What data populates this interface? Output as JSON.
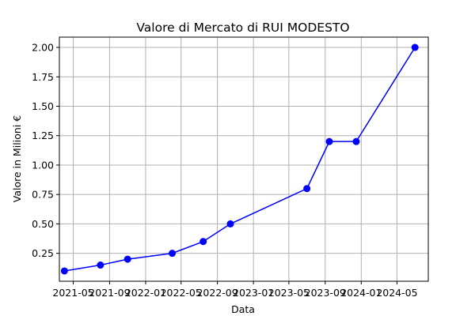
{
  "chart_data": {
    "type": "line",
    "title": "Valore di Mercato di RUI MODESTO",
    "xlabel": "Data",
    "ylabel": "Valore in Milioni €",
    "grid": true,
    "line_color": "#0000ff",
    "x_range": [
      "2021-03-15",
      "2024-08-15"
    ],
    "ylim": [
      0.0125,
      2.0875
    ],
    "x_ticks": [
      {
        "date": "2021-05-01",
        "label": "2021-05"
      },
      {
        "date": "2021-09-01",
        "label": "2021-09"
      },
      {
        "date": "2022-01-01",
        "label": "2022-01"
      },
      {
        "date": "2022-05-01",
        "label": "2022-05"
      },
      {
        "date": "2022-09-01",
        "label": "2022-09"
      },
      {
        "date": "2023-01-01",
        "label": "2023-01"
      },
      {
        "date": "2023-05-01",
        "label": "2023-05"
      },
      {
        "date": "2023-09-01",
        "label": "2023-09"
      },
      {
        "date": "2024-01-01",
        "label": "2024-01"
      },
      {
        "date": "2024-05-01",
        "label": "2024-05"
      }
    ],
    "y_ticks": [
      {
        "value": 0.25,
        "label": "0.25"
      },
      {
        "value": 0.5,
        "label": "0.50"
      },
      {
        "value": 0.75,
        "label": "0.75"
      },
      {
        "value": 1.0,
        "label": "1.00"
      },
      {
        "value": 1.25,
        "label": "1.25"
      },
      {
        "value": 1.5,
        "label": "1.50"
      },
      {
        "value": 1.75,
        "label": "1.75"
      },
      {
        "value": 2.0,
        "label": "2.00"
      }
    ],
    "series": [
      {
        "points": [
          {
            "x": "2021-04-01",
            "y": 0.1
          },
          {
            "x": "2021-08-01",
            "y": 0.15
          },
          {
            "x": "2021-11-01",
            "y": 0.2
          },
          {
            "x": "2022-04-01",
            "y": 0.25
          },
          {
            "x": "2022-07-15",
            "y": 0.35
          },
          {
            "x": "2022-10-15",
            "y": 0.5
          },
          {
            "x": "2023-07-01",
            "y": 0.8
          },
          {
            "x": "2023-09-15",
            "y": 1.2
          },
          {
            "x": "2023-12-15",
            "y": 1.2
          },
          {
            "x": "2024-07-01",
            "y": 2.0
          }
        ]
      }
    ]
  }
}
